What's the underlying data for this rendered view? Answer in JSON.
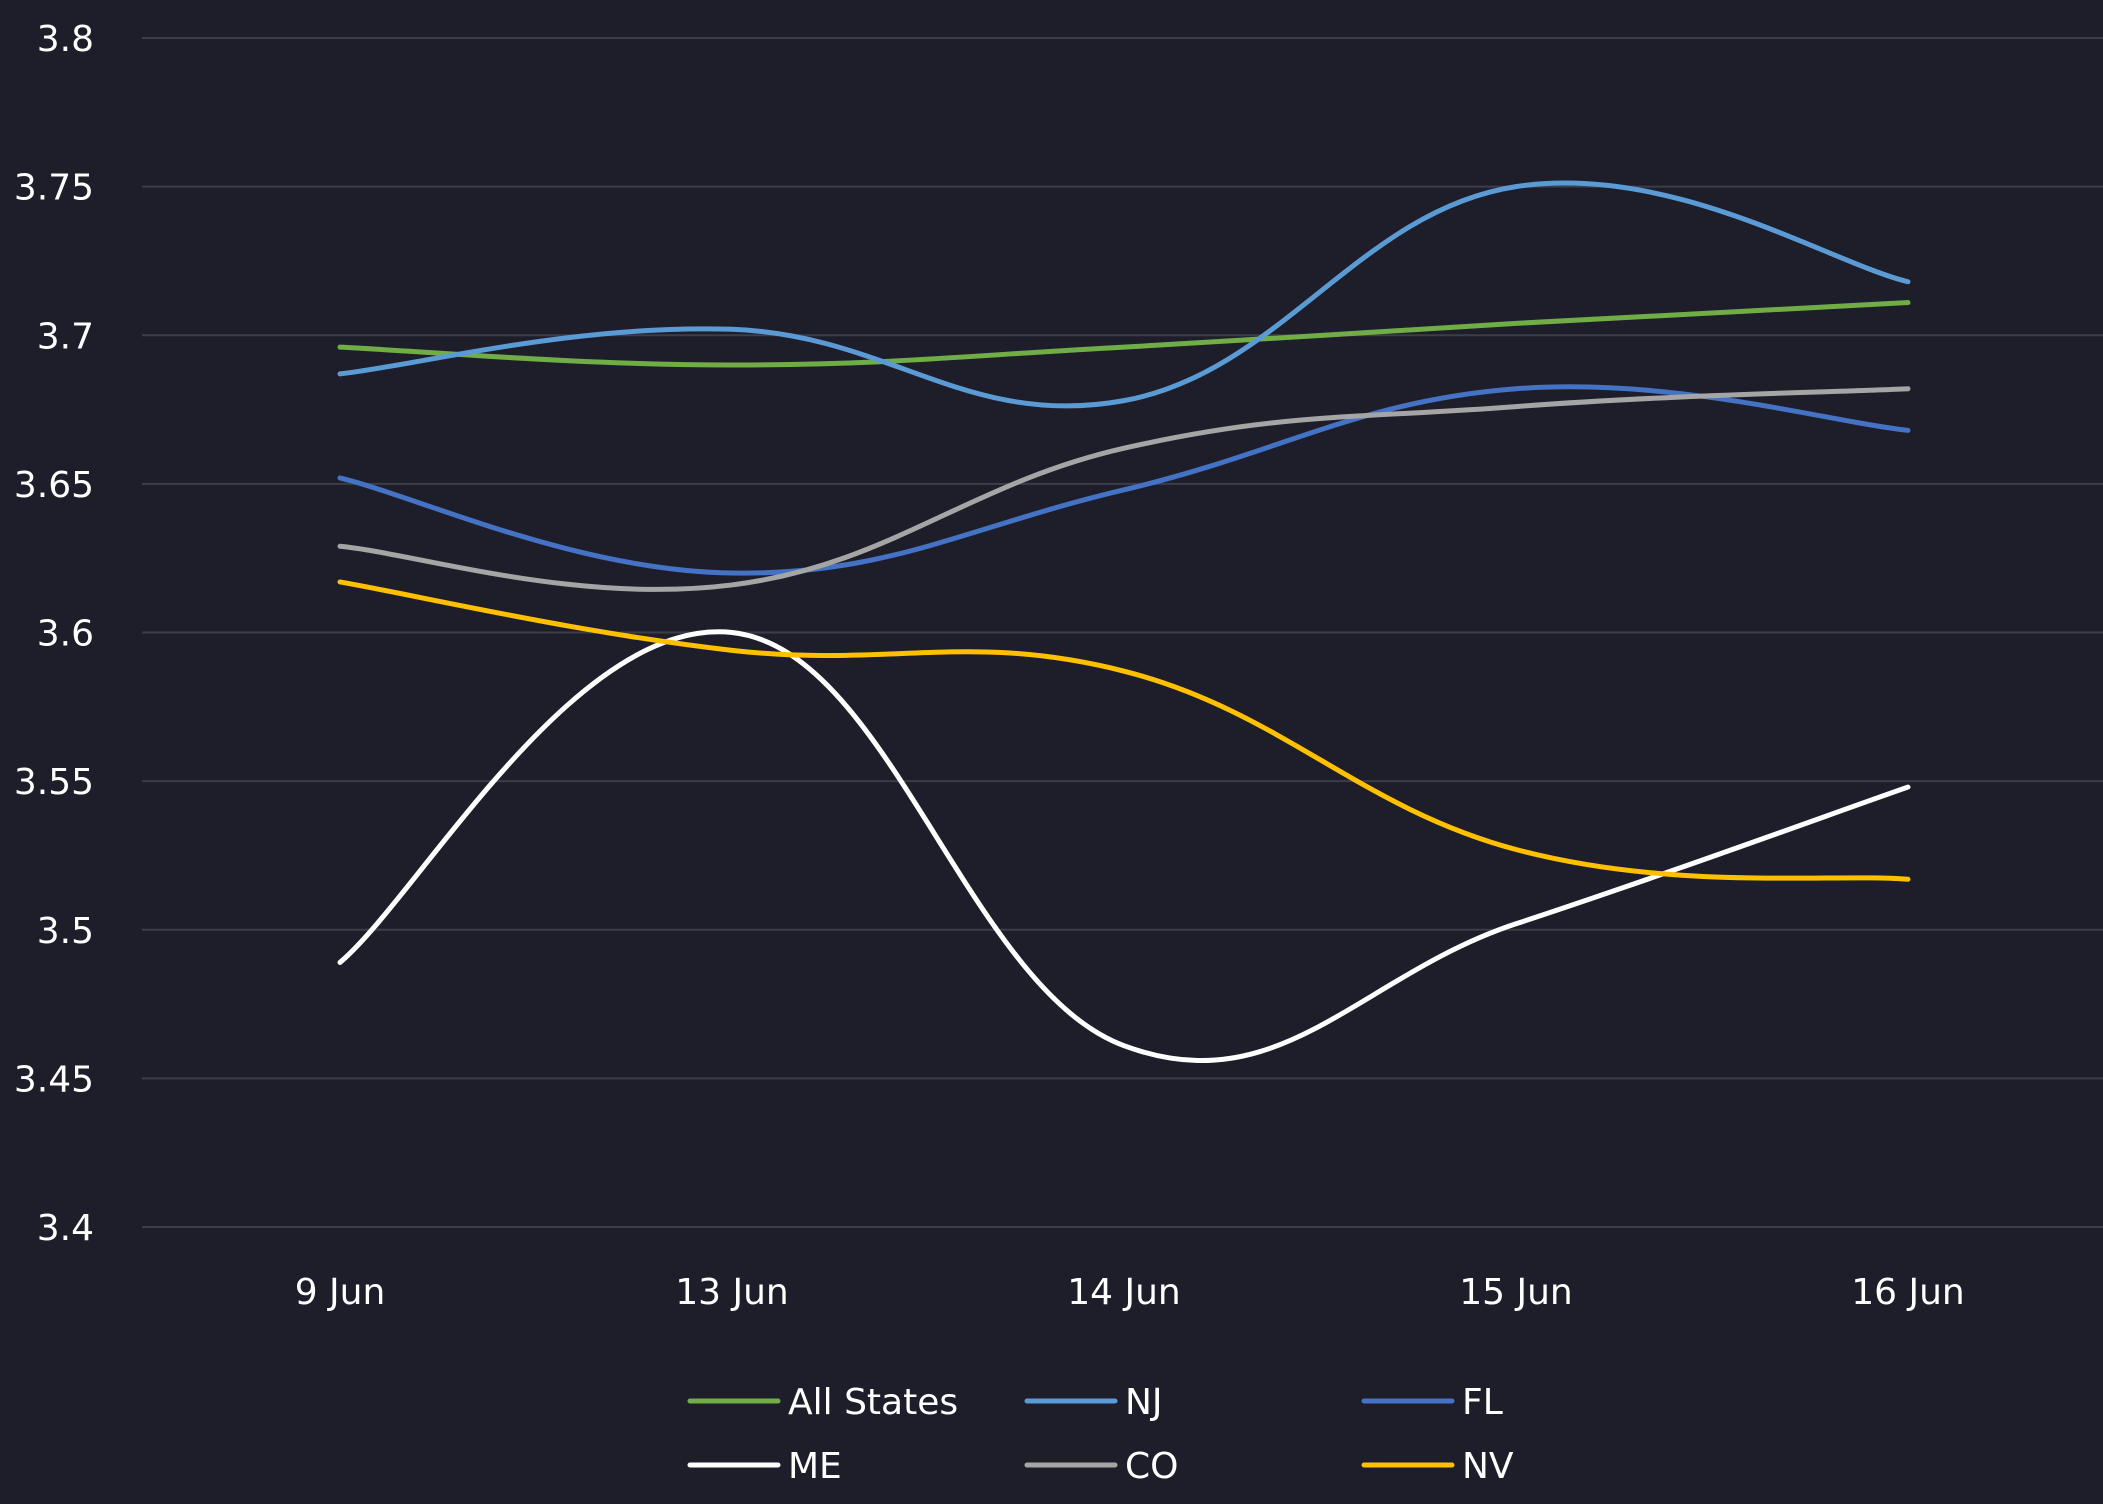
{
  "chart_data": {
    "type": "line",
    "smooth": true,
    "categories": [
      "9 Jun",
      "13 Jun",
      "14 Jun",
      "15 Jun",
      "16 Jun"
    ],
    "ylim": [
      3.4,
      3.8
    ],
    "yticks": [
      "3.8",
      "3.75",
      "3.7",
      "3.65",
      "3.6",
      "3.55",
      "3.5",
      "3.45",
      "3.4"
    ],
    "grid": true,
    "legend_position": "bottom",
    "background": "#1e1e2a",
    "grid_color": "#3d3d48",
    "text_color": "#ffffff",
    "series": [
      {
        "name": "All States",
        "color": "#70ad47",
        "values": [
          3.696,
          3.69,
          3.696,
          3.704,
          3.711
        ]
      },
      {
        "name": "NJ",
        "color": "#5b9bd5",
        "values": [
          3.687,
          3.702,
          3.678,
          3.75,
          3.718
        ]
      },
      {
        "name": "FL",
        "color": "#4472c4",
        "values": [
          3.652,
          3.62,
          3.648,
          3.682,
          3.668
        ]
      },
      {
        "name": "ME",
        "color": "#ffffff",
        "values": [
          3.489,
          3.6,
          3.461,
          3.502,
          3.548
        ]
      },
      {
        "name": "CO",
        "color": "#a5a5a5",
        "values": [
          3.629,
          3.616,
          3.662,
          3.676,
          3.682
        ]
      },
      {
        "name": "NV",
        "color": "#ffc000",
        "values": [
          3.617,
          3.594,
          3.587,
          3.527,
          3.517
        ]
      }
    ]
  }
}
